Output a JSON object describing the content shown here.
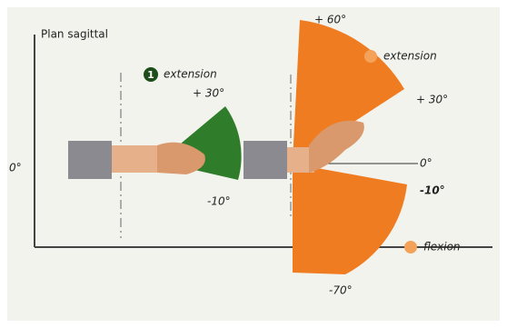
{
  "title": "Plan sagittal",
  "left_zero": "0°",
  "figure1": {
    "number": "1",
    "label": "extension",
    "upper": "+ 30°",
    "lower": "-10°"
  },
  "figure2": {
    "label_upper": "extension",
    "label_lower": "flexion",
    "angles": [
      "+ 60°",
      "+ 30°",
      "0°",
      "-10°",
      "-70°"
    ]
  }
}
